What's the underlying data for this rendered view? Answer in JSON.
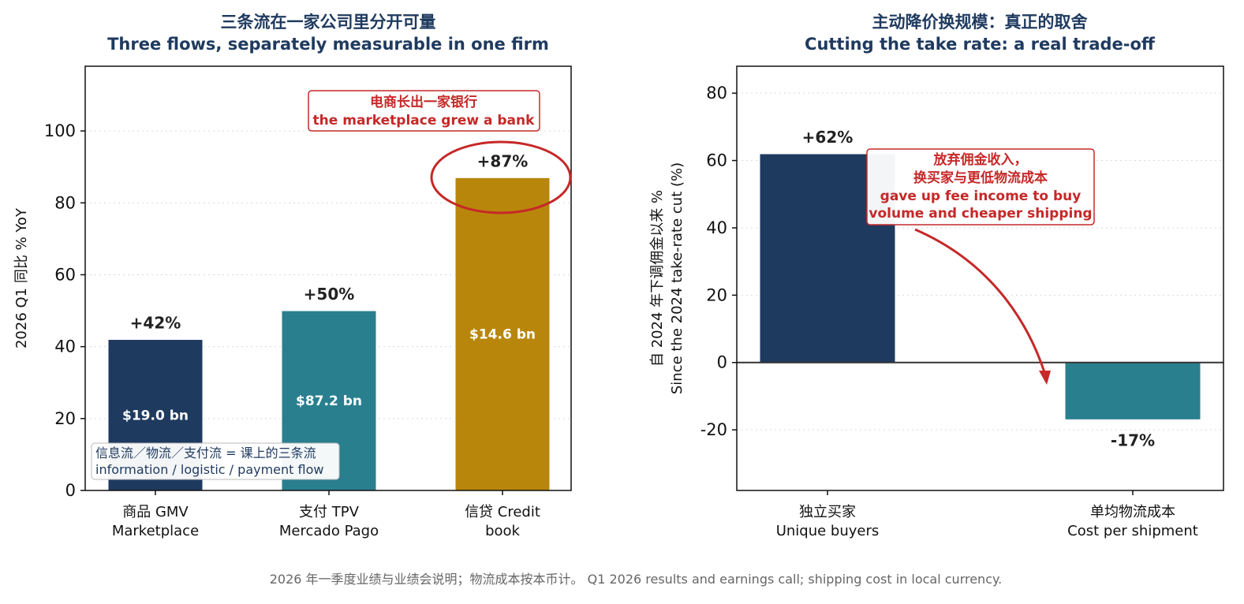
{
  "colors": {
    "navy": "#1f3a5f",
    "teal": "#2a7f8f",
    "gold": "#b8860b",
    "red": "#c62828"
  },
  "chart_data": [
    {
      "type": "bar",
      "title_zh": "三条流在一家公司里分开可量",
      "title_en": "Three flows, separately measurable in one firm",
      "ylabel": "2026 Q1 同比 % YoY",
      "ylim": [
        0,
        118
      ],
      "yticks": [
        0,
        20,
        40,
        60,
        80,
        100
      ],
      "grid": true,
      "categories": [
        {
          "zh": "商品 GMV",
          "en": "Marketplace"
        },
        {
          "zh": "支付 TPV",
          "en": "Mercado Pago"
        },
        {
          "zh": "信贷 Credit",
          "en": "book"
        }
      ],
      "values": [
        42,
        50,
        87
      ],
      "value_labels": [
        "+42%",
        "+50%",
        "+87%"
      ],
      "inner_labels": [
        "$19.0 bn",
        "$87.2 bn",
        "$14.6 bn"
      ],
      "bar_colors": [
        "#1f3a5f",
        "#2a7f8f",
        "#b8860b"
      ],
      "annotation": {
        "zh": "电商长出一家银行",
        "en": "the marketplace grew a bank"
      },
      "legend_note": {
        "zh": "信息流／物流／支付流 = 课上的三条流",
        "en": "information / logistic / payment flow"
      }
    },
    {
      "type": "bar",
      "title_zh": "主动降价换规模：真正的取舍",
      "title_en": "Cutting the take rate: a real trade-off",
      "ylabel_zh": "自 2024 年下调佣金以来 %",
      "ylabel_en": "Since the 2024 take-rate cut (%)",
      "ylim": [
        -38,
        88
      ],
      "yticks": [
        -20,
        0,
        20,
        40,
        60,
        80
      ],
      "grid": true,
      "categories": [
        {
          "zh": "独立买家",
          "en": "Unique buyers"
        },
        {
          "zh": "单均物流成本",
          "en": "Cost per shipment"
        }
      ],
      "values": [
        62,
        -17
      ],
      "value_labels": [
        "+62%",
        "-17%"
      ],
      "bar_colors": [
        "#1f3a5f",
        "#2a7f8f"
      ],
      "annotation": {
        "zh_1": "放弃佣金收入，",
        "zh_2": "换买家与更低物流成本",
        "en_1": "gave up fee income to buy",
        "en_2": "volume and cheaper shipping"
      }
    }
  ],
  "footnote": "2026 年一季度业绩与业绩会说明；物流成本按本币计。 Q1 2026 results and earnings call; shipping cost in local currency."
}
